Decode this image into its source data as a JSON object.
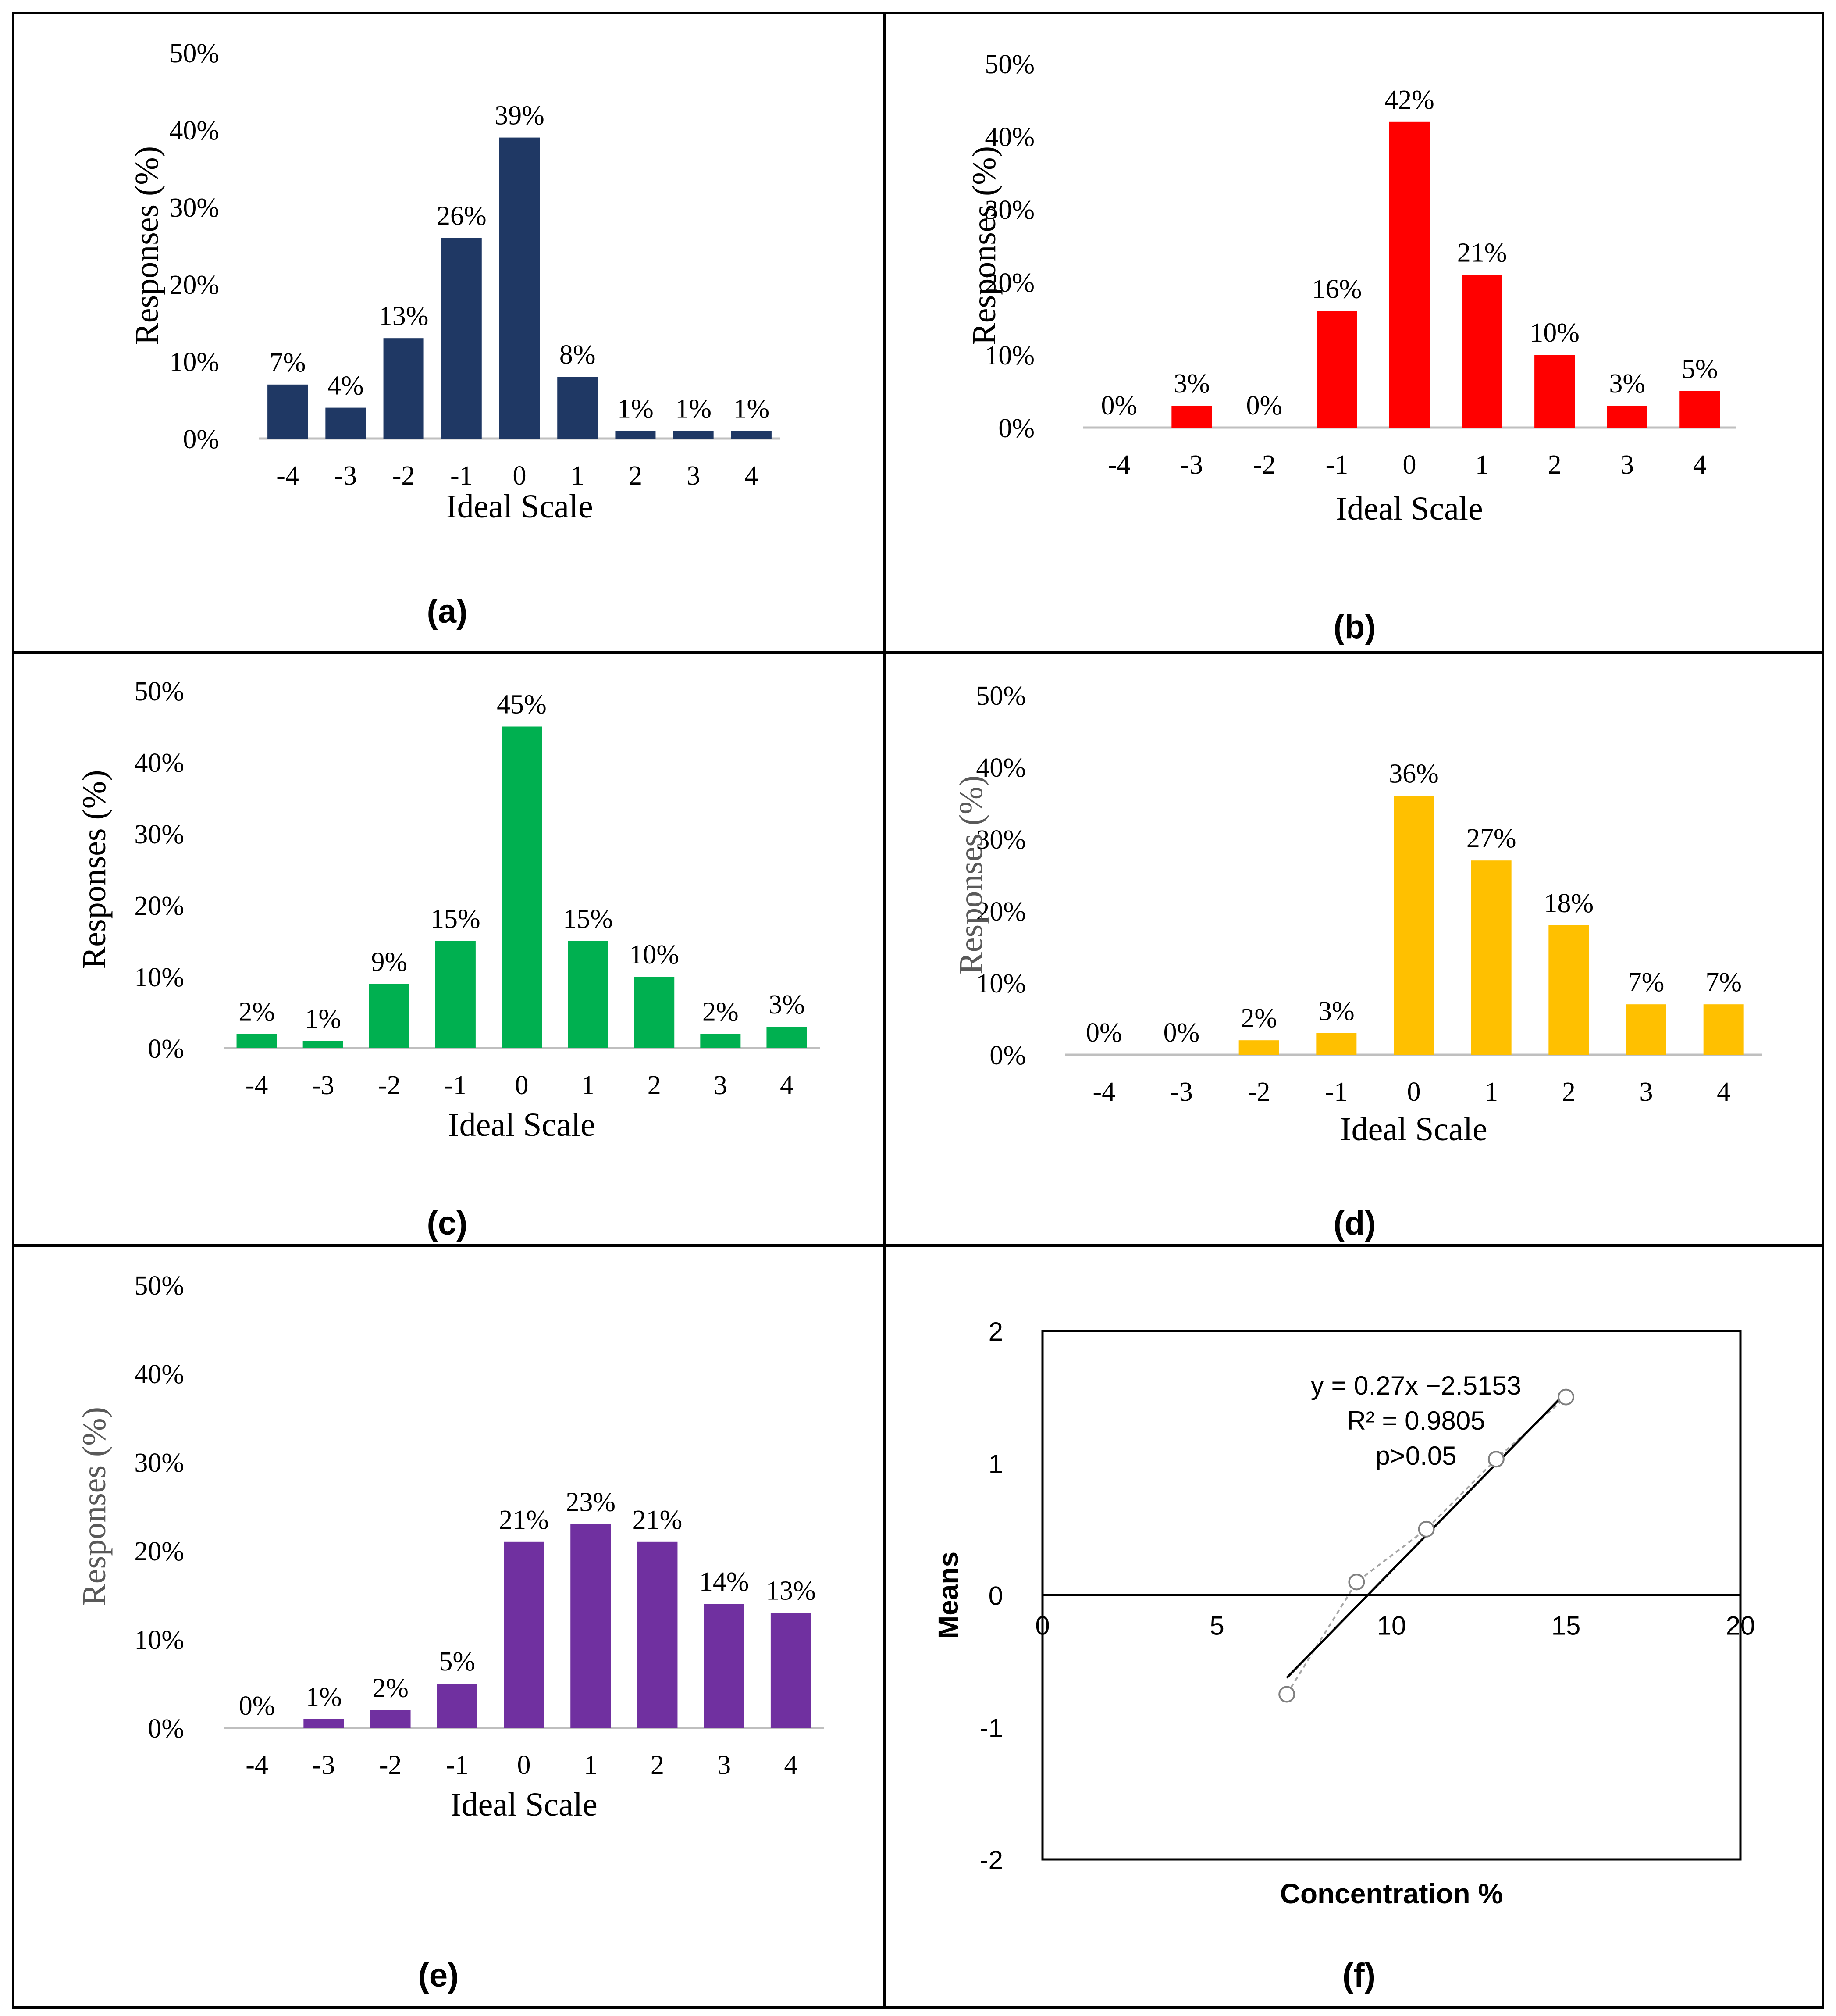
{
  "chart_data": [
    {
      "type": "bar",
      "panel_label": "(a)",
      "color": "#1f3864",
      "xlabel": "Ideal Scale",
      "ylabel": "Responses (%)",
      "ylim": [
        0,
        50
      ],
      "yticks": [
        "0%",
        "10%",
        "20%",
        "30%",
        "40%",
        "50%"
      ],
      "categories": [
        "-4",
        "-3",
        "-2",
        "-1",
        "0",
        "1",
        "2",
        "3",
        "4"
      ],
      "values": [
        7,
        4,
        13,
        26,
        39,
        8,
        1,
        1,
        1
      ],
      "data_labels": [
        "7%",
        "4%",
        "13%",
        "26%",
        "39%",
        "8%",
        "1%",
        "1%",
        "1%"
      ]
    },
    {
      "type": "bar",
      "panel_label": "(b)",
      "color": "#ff0000",
      "xlabel": "Ideal Scale",
      "ylabel": "Responses (%)",
      "ylim": [
        0,
        50
      ],
      "yticks": [
        "0%",
        "10%",
        "20%",
        "30%",
        "40%",
        "50%"
      ],
      "categories": [
        "-4",
        "-3",
        "-2",
        "-1",
        "0",
        "1",
        "2",
        "3",
        "4"
      ],
      "values": [
        0,
        3,
        0,
        16,
        42,
        21,
        10,
        3,
        5
      ],
      "data_labels": [
        "0%",
        "3%",
        "0%",
        "16%",
        "42%",
        "21%",
        "10%",
        "3%",
        "5%"
      ]
    },
    {
      "type": "bar",
      "panel_label": "(c)",
      "color": "#00b050",
      "xlabel": "Ideal Scale",
      "ylabel": "Responses (%)",
      "ylim": [
        0,
        50
      ],
      "yticks": [
        "0%",
        "10%",
        "20%",
        "30%",
        "40%",
        "50%"
      ],
      "categories": [
        "-4",
        "-3",
        "-2",
        "-1",
        "0",
        "1",
        "2",
        "3",
        "4"
      ],
      "values": [
        2,
        1,
        9,
        15,
        45,
        15,
        10,
        2,
        3
      ],
      "data_labels": [
        "2%",
        "1%",
        "9%",
        "15%",
        "45%",
        "15%",
        "10%",
        "2%",
        "3%"
      ]
    },
    {
      "type": "bar",
      "panel_label": "(d)",
      "color": "#ffc000",
      "xlabel": "Ideal Scale",
      "ylabel": "Responses (%)",
      "ylim": [
        0,
        50
      ],
      "yticks": [
        "0%",
        "10%",
        "20%",
        "30%",
        "40%",
        "50%"
      ],
      "categories": [
        "-4",
        "-3",
        "-2",
        "-1",
        "0",
        "1",
        "2",
        "3",
        "4"
      ],
      "values": [
        0,
        0,
        2,
        3,
        36,
        27,
        18,
        7,
        7
      ],
      "data_labels": [
        "0%",
        "0%",
        "2%",
        "3%",
        "36%",
        "27%",
        "18%",
        "7%",
        "7%"
      ]
    },
    {
      "type": "bar",
      "panel_label": "(e)",
      "color": "#7030a0",
      "xlabel": "Ideal Scale",
      "ylabel": "Responses (%)",
      "ylim": [
        0,
        50
      ],
      "yticks": [
        "0%",
        "10%",
        "20%",
        "30%",
        "40%",
        "50%"
      ],
      "categories": [
        "-4",
        "-3",
        "-2",
        "-1",
        "0",
        "1",
        "2",
        "3",
        "4"
      ],
      "values": [
        0,
        1,
        2,
        5,
        21,
        23,
        21,
        14,
        13
      ],
      "data_labels": [
        "0%",
        "1%",
        "2%",
        "5%",
        "21%",
        "23%",
        "21%",
        "14%",
        "13%"
      ]
    },
    {
      "type": "scatter",
      "panel_label": "(f)",
      "xlabel": "Concentration %",
      "ylabel": "Means",
      "xlim": [
        0,
        20
      ],
      "ylim": [
        -2,
        2
      ],
      "xticks": [
        "0",
        "5",
        "10",
        "15",
        "20"
      ],
      "yticks": [
        "-2",
        "-1",
        "0",
        "1",
        "2"
      ],
      "points": [
        {
          "x": 7,
          "y": -0.75
        },
        {
          "x": 9,
          "y": 0.1
        },
        {
          "x": 11,
          "y": 0.5
        },
        {
          "x": 13,
          "y": 1.03
        },
        {
          "x": 15,
          "y": 1.5
        }
      ],
      "trendline": {
        "slope": 0.27,
        "intercept": -2.5153,
        "x_range": [
          7,
          15
        ]
      },
      "annotation": [
        "y = 0.27x −2.5153",
        "R² = 0.9805",
        "p>0.05"
      ]
    }
  ]
}
